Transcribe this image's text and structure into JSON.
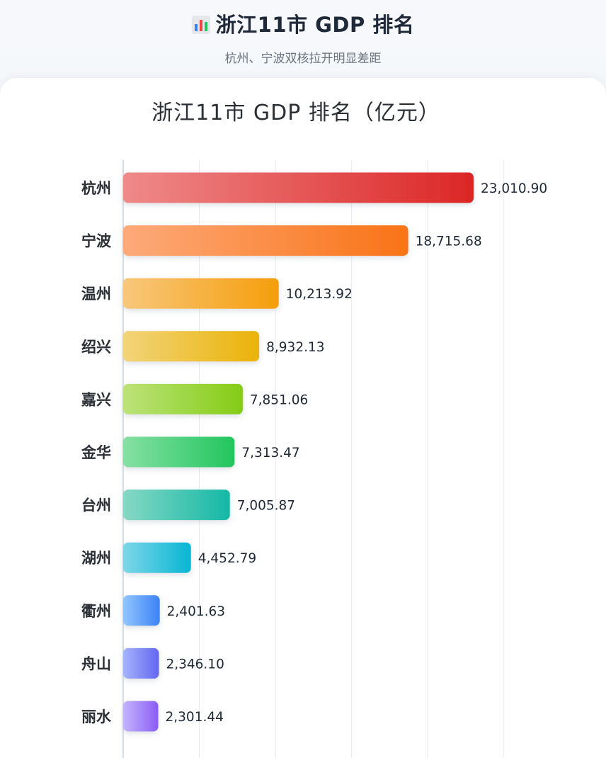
{
  "header": {
    "icon": "bar-chart-icon",
    "title": "浙江11市 GDP 排名",
    "subtitle": "杭州、宁波双核拉开明显差距"
  },
  "chart_data": {
    "type": "bar",
    "orientation": "horizontal",
    "title": "浙江11市 GDP 排名（亿元）",
    "categories": [
      "杭州",
      "宁波",
      "温州",
      "绍兴",
      "嘉兴",
      "金华",
      "台州",
      "湖州",
      "衢州",
      "舟山",
      "丽水"
    ],
    "values": [
      23010.9,
      18715.68,
      10213.92,
      8932.13,
      7851.06,
      7313.47,
      7005.87,
      4452.79,
      2401.63,
      2346.1,
      2301.44
    ],
    "value_labels": [
      "23,010.90",
      "18,715.68",
      "10,213.92",
      "8,932.13",
      "7,851.06",
      "7,313.47",
      "7,005.87",
      "4,452.79",
      "2,401.63",
      "2,346.10",
      "2,301.44"
    ],
    "xlim": [
      0,
      25000
    ],
    "grid": true,
    "colors": [
      [
        "#ef8a8a",
        "#dc2626"
      ],
      [
        "#fdaa7a",
        "#f97316"
      ],
      [
        "#f8c77b",
        "#f59e0b"
      ],
      [
        "#f2d47a",
        "#eab308"
      ],
      [
        "#bce37a",
        "#84cc16"
      ],
      [
        "#86e0a4",
        "#22c55e"
      ],
      [
        "#86d8c4",
        "#14b8a6"
      ],
      [
        "#7fd6e8",
        "#06b6d4"
      ],
      [
        "#93c5fd",
        "#3b82f6"
      ],
      [
        "#a5b4fc",
        "#6366f1"
      ],
      [
        "#c4b5fd",
        "#8b5cf6"
      ]
    ]
  }
}
